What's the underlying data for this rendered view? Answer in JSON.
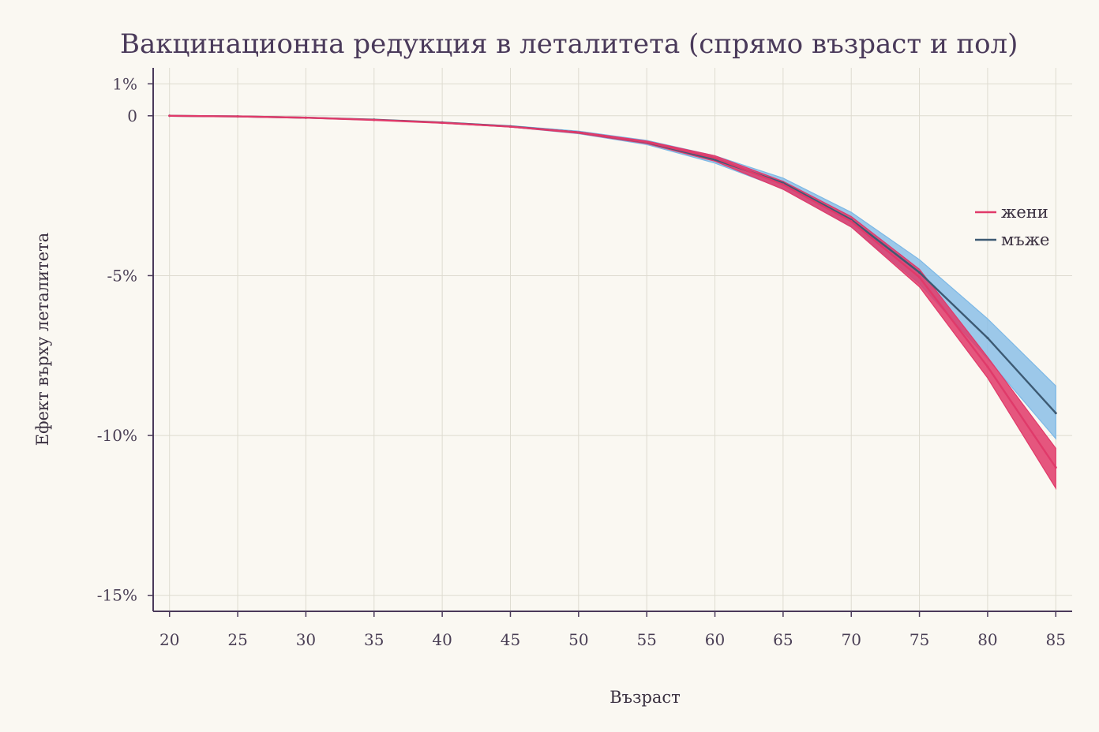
{
  "chart_data": {
    "type": "line",
    "title": "Вакцинационна редукция в леталитета (спрямо възраст и пол)",
    "xlabel": "Възраст",
    "ylabel": "Ефект върху леталитета",
    "x": [
      20,
      25,
      30,
      35,
      40,
      45,
      50,
      55,
      60,
      65,
      70,
      75,
      80,
      85
    ],
    "x_ticks": [
      "20",
      "25",
      "30",
      "35",
      "40",
      "45",
      "50",
      "55",
      "60",
      "65",
      "70",
      "75",
      "80",
      "85"
    ],
    "y_ticks": [
      {
        "value": 1,
        "label": "1%"
      },
      {
        "value": 0,
        "label": "0"
      },
      {
        "value": -5,
        "label": "-5%"
      },
      {
        "value": -10,
        "label": "-10%"
      },
      {
        "value": -15,
        "label": "-15%"
      }
    ],
    "xlim": [
      18.8,
      86.2
    ],
    "ylim": [
      -15.5,
      1.5
    ],
    "grid": true,
    "legend_position": "right",
    "series": [
      {
        "name": "жени",
        "color": "#e03a6a",
        "band_color": "#e03a6a",
        "values": [
          0,
          -0.02,
          -0.06,
          -0.13,
          -0.22,
          -0.34,
          -0.52,
          -0.82,
          -1.32,
          -2.15,
          -3.3,
          -5.05,
          -7.85,
          -11.0
        ],
        "lower": [
          0,
          -0.02,
          -0.06,
          -0.13,
          -0.23,
          -0.35,
          -0.55,
          -0.87,
          -1.42,
          -2.3,
          -3.48,
          -5.35,
          -8.2,
          -11.65
        ],
        "upper": [
          0,
          -0.02,
          -0.06,
          -0.12,
          -0.21,
          -0.33,
          -0.5,
          -0.79,
          -1.25,
          -2.05,
          -3.15,
          -4.8,
          -7.55,
          -10.4
        ]
      },
      {
        "name": "мъже",
        "color": "#3d5a73",
        "band_color": "#7cb8e6",
        "values": [
          0,
          -0.02,
          -0.06,
          -0.12,
          -0.21,
          -0.33,
          -0.52,
          -0.83,
          -1.37,
          -2.1,
          -3.25,
          -4.9,
          -6.95,
          -9.3
        ],
        "lower": [
          0,
          -0.02,
          -0.06,
          -0.13,
          -0.23,
          -0.35,
          -0.56,
          -0.9,
          -1.48,
          -2.28,
          -3.48,
          -5.25,
          -7.6,
          -10.1
        ],
        "upper": [
          0,
          -0.02,
          -0.06,
          -0.12,
          -0.2,
          -0.31,
          -0.48,
          -0.77,
          -1.25,
          -1.95,
          -3.02,
          -4.5,
          -6.35,
          -8.45
        ]
      }
    ]
  }
}
